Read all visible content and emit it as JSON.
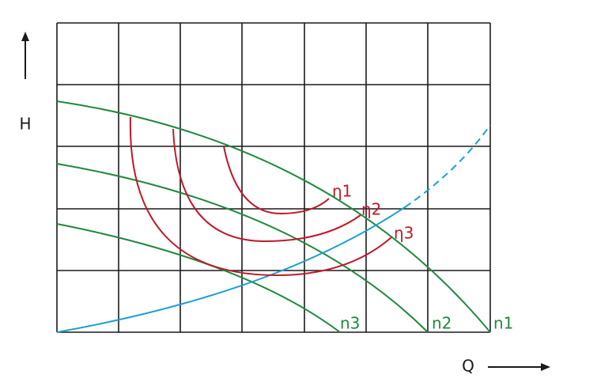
{
  "axes": {
    "y_label": "H",
    "x_label": "Q"
  },
  "curves": {
    "efficiency": [
      "η1",
      "η2",
      "η3"
    ],
    "speed": [
      "n1",
      "n2",
      "n3"
    ]
  }
}
